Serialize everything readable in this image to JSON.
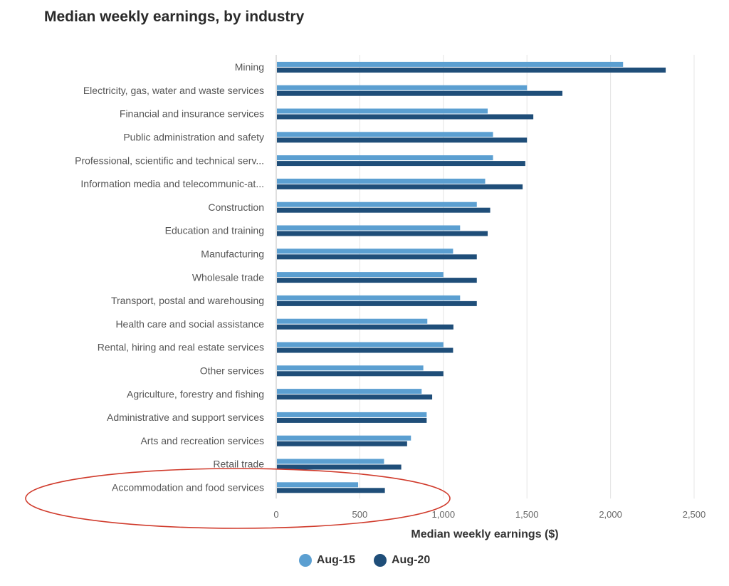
{
  "chart_data": {
    "type": "bar",
    "orientation": "horizontal",
    "title": "Median weekly earnings, by industry",
    "xlabel": "Median weekly earnings ($)",
    "ylabel": "",
    "xlim": [
      0,
      2500
    ],
    "xticks": [
      0,
      500,
      1000,
      1500,
      2000,
      2500
    ],
    "xtick_labels": [
      "0",
      "500",
      "1,000",
      "1,500",
      "2,000",
      "2,500"
    ],
    "grid": true,
    "legend_position": "bottom",
    "categories": [
      "Mining",
      "Electricity, gas, water and waste services",
      "Financial and insurance services",
      "Public administration and safety",
      "Professional, scientific and technical serv...",
      "Information media and telecommunic-at...",
      "Construction",
      "Education and training",
      "Manufacturing",
      "Wholesale trade",
      "Transport, postal and warehousing",
      "Health care and social assistance",
      "Rental, hiring and real estate services",
      "Other services",
      "Agriculture, forestry and fishing",
      "Administrative and support services",
      "Arts and recreation services",
      "Retail trade",
      "Accommodation and food services"
    ],
    "series": [
      {
        "name": "Aug-15",
        "color": "#5b9fd1",
        "values": [
          2075,
          1500,
          1265,
          1297,
          1297,
          1250,
          1200,
          1100,
          1058,
          1000,
          1100,
          904,
          1000,
          880,
          870,
          900,
          806,
          645,
          490
        ]
      },
      {
        "name": "Aug-20",
        "color": "#1f4e79",
        "values": [
          2330,
          1712,
          1538,
          1500,
          1490,
          1474,
          1280,
          1265,
          1200,
          1200,
          1200,
          1060,
          1058,
          1000,
          933,
          900,
          783,
          748,
          650
        ]
      }
    ],
    "annotations": [
      {
        "type": "ellipse",
        "color": "#d03a2b",
        "target": "Accommodation and food services"
      }
    ]
  }
}
